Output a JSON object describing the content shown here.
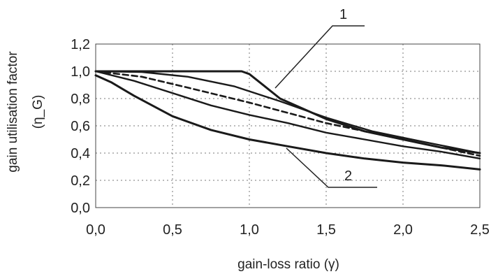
{
  "chart_data": {
    "type": "line",
    "title": "",
    "xlabel": "gain-loss ratio (γ)",
    "ylabel_line1": "gain utilisation factor",
    "ylabel_line2": "(η_G)",
    "xlim": [
      0,
      2.5
    ],
    "ylim": [
      0,
      1.2
    ],
    "x_ticks": [
      0,
      0.5,
      1.0,
      1.5,
      2.0,
      2.5
    ],
    "x_tick_labels": [
      "0,0",
      "0,5",
      "1,0",
      "1,5",
      "2,0",
      "2,5"
    ],
    "y_ticks": [
      0,
      0.2,
      0.4,
      0.6,
      0.8,
      1.0,
      1.2
    ],
    "y_tick_labels": [
      "0,0",
      "0,2",
      "0,4",
      "0,6",
      "0,8",
      "1,0",
      "1,2"
    ],
    "grid": "dotted",
    "legend": "none",
    "series": [
      {
        "style": "solid-thick",
        "points": [
          [
            0,
            1.0
          ],
          [
            0.95,
            1.0
          ],
          [
            1.0,
            0.98
          ],
          [
            1.2,
            0.8
          ],
          [
            1.5,
            0.65
          ],
          [
            1.75,
            0.56
          ],
          [
            2.0,
            0.5
          ],
          [
            2.25,
            0.44
          ],
          [
            2.5,
            0.4
          ]
        ]
      },
      {
        "style": "solid",
        "points": [
          [
            0,
            1.0
          ],
          [
            0.3,
            0.995
          ],
          [
            0.6,
            0.96
          ],
          [
            0.9,
            0.89
          ],
          [
            1.2,
            0.78
          ],
          [
            1.5,
            0.66
          ],
          [
            1.8,
            0.56
          ],
          [
            2.1,
            0.49
          ],
          [
            2.5,
            0.4
          ]
        ]
      },
      {
        "style": "dashed",
        "points": [
          [
            0,
            1.0
          ],
          [
            0.3,
            0.96
          ],
          [
            0.6,
            0.88
          ],
          [
            1.0,
            0.77
          ],
          [
            1.5,
            0.62
          ],
          [
            2.0,
            0.5
          ],
          [
            2.5,
            0.38
          ]
        ]
      },
      {
        "style": "solid",
        "points": [
          [
            0,
            1.0
          ],
          [
            0.25,
            0.93
          ],
          [
            0.5,
            0.84
          ],
          [
            0.75,
            0.75
          ],
          [
            1.0,
            0.68
          ],
          [
            1.25,
            0.62
          ],
          [
            1.5,
            0.55
          ],
          [
            1.75,
            0.5
          ],
          [
            2.0,
            0.45
          ],
          [
            2.25,
            0.41
          ],
          [
            2.5,
            0.36
          ]
        ]
      },
      {
        "style": "solid-thick",
        "points": [
          [
            0,
            0.97
          ],
          [
            0.1,
            0.92
          ],
          [
            0.25,
            0.82
          ],
          [
            0.5,
            0.67
          ],
          [
            0.75,
            0.57
          ],
          [
            1.0,
            0.5
          ],
          [
            1.25,
            0.45
          ],
          [
            1.5,
            0.4
          ],
          [
            1.75,
            0.36
          ],
          [
            2.0,
            0.33
          ],
          [
            2.25,
            0.31
          ],
          [
            2.5,
            0.28
          ]
        ]
      }
    ],
    "annotations": [
      {
        "text": "1",
        "points_to_series": 0
      },
      {
        "text": "2",
        "points_to_series": 4
      }
    ]
  }
}
